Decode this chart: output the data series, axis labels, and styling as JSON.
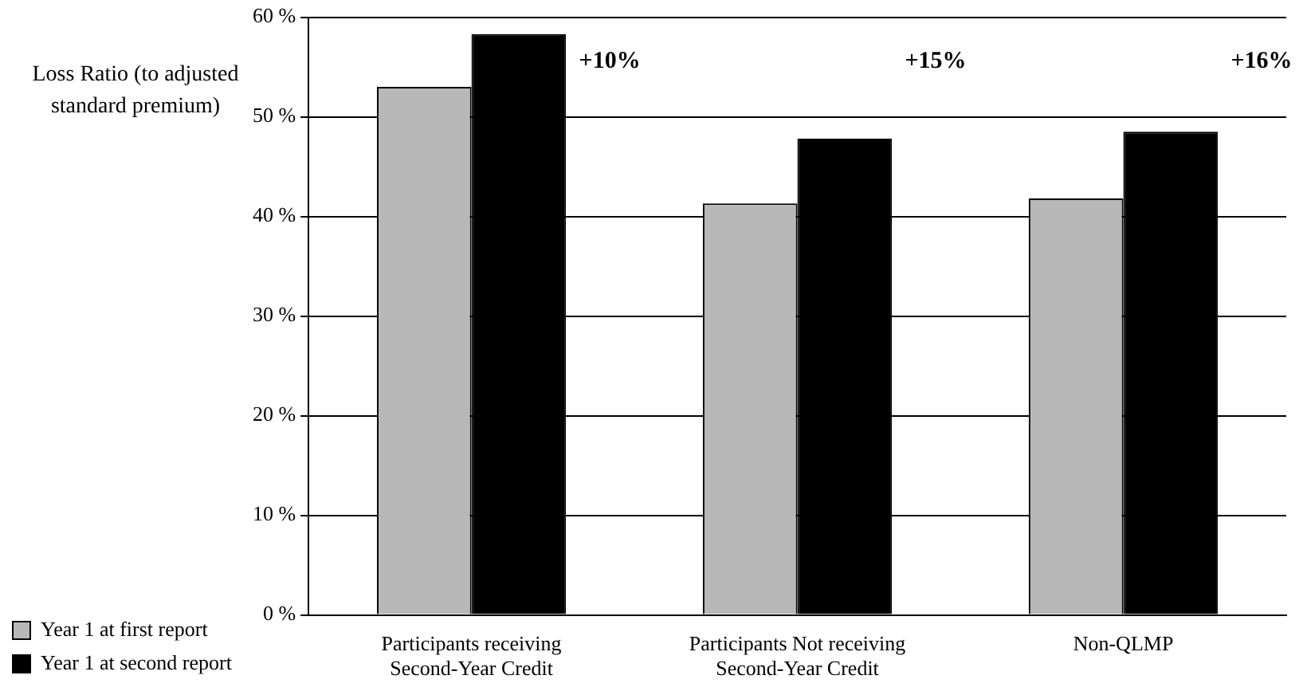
{
  "chart_data": {
    "type": "bar",
    "ylabel": "Loss Ratio (to adjusted standard premium)",
    "categories": [
      "Participants receiving Second-Year Credit",
      "Participants Not receiving Second-Year Credit",
      "Non-QLMP"
    ],
    "series": [
      {
        "name": "Year 1 at first report",
        "color": "#b8b8b8",
        "values": [
          53,
          41.3,
          41.8
        ]
      },
      {
        "name": "Year 1 at second report",
        "color": "#000000",
        "values": [
          58.3,
          47.8,
          48.5
        ]
      }
    ],
    "ylim": [
      0,
      60
    ],
    "yticks": [
      {
        "value": 0,
        "label": "0 %"
      },
      {
        "value": 10,
        "label": "10 %"
      },
      {
        "value": 20,
        "label": "20 %"
      },
      {
        "value": 30,
        "label": "30 %"
      },
      {
        "value": 40,
        "label": "40 %"
      },
      {
        "value": 50,
        "label": "50 %"
      },
      {
        "value": 60,
        "label": "60 %"
      }
    ],
    "grid": "y",
    "legend": "bottom left",
    "annotations": [
      "+10%",
      "+15%",
      "+16%"
    ]
  }
}
